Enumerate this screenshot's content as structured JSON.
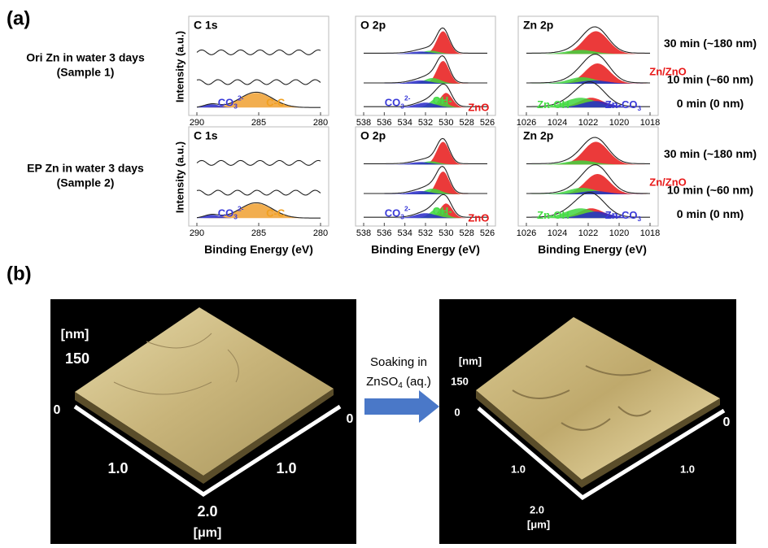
{
  "panel_a": {
    "label": "(a)",
    "x_axis_labels": [
      "Binding Energy (eV)",
      "Binding Energy (eV)",
      "Binding Energy (eV)"
    ],
    "rows": [
      {
        "name": "Ori Zn in water 3 days",
        "sample": "(Sample 1)",
        "y_axis_label": "Intensity (a.u.)",
        "times": [
          "30 min (~180 nm)",
          "10 min (~60 nm)",
          "0 min (0 nm)"
        ],
        "spectra": [
          {
            "title": "C 1s",
            "ticks": [
              290,
              285,
              280
            ],
            "labels": [
              {
                "text": "CO",
                "sub": "3",
                "sup": "2-",
                "color": "#3a3ad8"
              },
              {
                "text": "C-C",
                "color": "#f0a020"
              }
            ]
          },
          {
            "title": "O 2p",
            "ticks": [
              538,
              536,
              534,
              532,
              530,
              528,
              526
            ],
            "labels": [
              {
                "text": "CO",
                "sub": "3",
                "sup": "2-",
                "color": "#3a3ad8"
              },
              {
                "text": "OH-",
                "color": "#44dd44"
              },
              {
                "text": "ZnO",
                "color": "#e81818"
              }
            ]
          },
          {
            "title": "Zn 2p",
            "ticks": [
              1026,
              1024,
              1022,
              1020,
              1018
            ],
            "labels": [
              {
                "text": "Zn/ZnO",
                "color": "#e81818"
              },
              {
                "text": "Zn-OH",
                "color": "#44dd44"
              },
              {
                "text": "Zn-CO",
                "sub": "3",
                "color": "#3a3ad8"
              }
            ]
          }
        ]
      },
      {
        "name": "EP Zn in water 3 days",
        "sample": "(Sample 2)",
        "y_axis_label": "Intensity (a.u.)",
        "times": [
          "30 min (~180 nm)",
          "10 min (~60 nm)",
          "0 min (0 nm)"
        ],
        "spectra": [
          {
            "title": "C 1s",
            "ticks": [
              290,
              285,
              280
            ],
            "labels": [
              {
                "text": "CO",
                "sub": "3",
                "sup": "2-",
                "color": "#3a3ad8"
              },
              {
                "text": "C-C",
                "color": "#f0a020"
              }
            ]
          },
          {
            "title": "O 2p",
            "ticks": [
              538,
              536,
              534,
              532,
              530,
              528,
              526
            ],
            "labels": [
              {
                "text": "CO",
                "sub": "3",
                "sup": "2-",
                "color": "#3a3ad8"
              },
              {
                "text": "OH-",
                "color": "#44dd44"
              },
              {
                "text": "ZnO",
                "color": "#e81818"
              }
            ]
          },
          {
            "title": "Zn 2p",
            "ticks": [
              1026,
              1024,
              1022,
              1020,
              1018
            ],
            "labels": [
              {
                "text": "Zn/ZnO",
                "color": "#e81818"
              },
              {
                "text": "Zn-OH",
                "color": "#44dd44"
              },
              {
                "text": "Zn-CO",
                "sub": "3",
                "color": "#3a3ad8"
              }
            ]
          }
        ]
      }
    ]
  },
  "panel_b": {
    "label": "(b)",
    "arrow_text": {
      "line1": "Soaking in",
      "line2": "ZnSO",
      "sub": "4",
      "line2_end": " (aq.)"
    },
    "images": [
      {
        "z_unit": "[nm]",
        "z_max": "150",
        "z_min": "0",
        "y_start": "0",
        "x_mid": "1.0",
        "y_mid": "1.0",
        "x_end": "2.0",
        "xy_unit": "[μm]"
      },
      {
        "z_unit": "[nm]",
        "z_max": "150",
        "z_min": "0",
        "y_start": "0",
        "x_mid": "1.0",
        "y_mid": "1.0",
        "x_end": "2.0",
        "xy_unit": "[μm]"
      }
    ]
  }
}
